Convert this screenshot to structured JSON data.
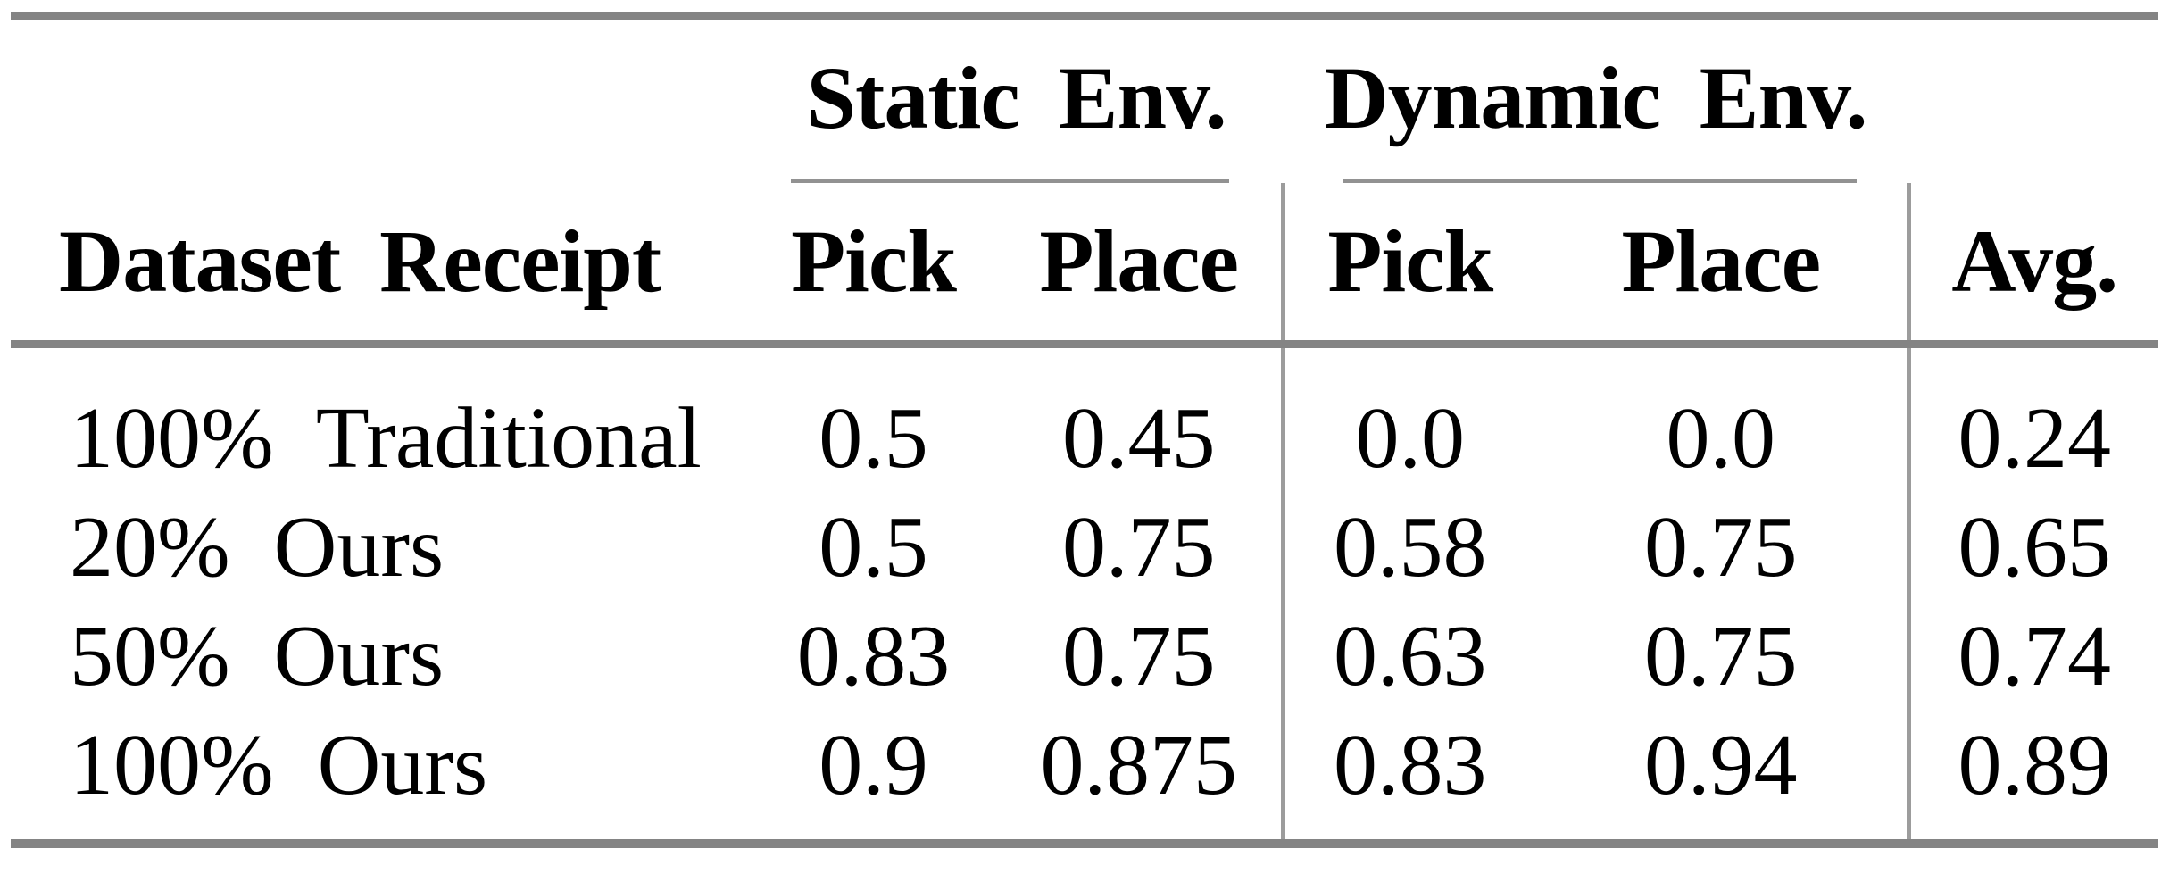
{
  "table": {
    "col_groups": [
      {
        "label": "Static Env."
      },
      {
        "label": "Dynamic Env."
      }
    ],
    "columns": {
      "dataset": "Dataset Receipt",
      "static_pick": "Pick",
      "static_place": "Place",
      "dynamic_pick": "Pick",
      "dynamic_place": "Place",
      "avg": "Avg."
    },
    "rows": [
      {
        "label": "100% Traditional",
        "static_pick": "0.5",
        "static_place": "0.45",
        "dynamic_pick": "0.0",
        "dynamic_place": "0.0",
        "avg": "0.24"
      },
      {
        "label": "20% Ours",
        "static_pick": "0.5",
        "static_place": "0.75",
        "dynamic_pick": "0.58",
        "dynamic_place": "0.75",
        "avg": "0.65"
      },
      {
        "label": "50% Ours",
        "static_pick": "0.83",
        "static_place": "0.75",
        "dynamic_pick": "0.63",
        "dynamic_place": "0.75",
        "avg": "0.74"
      },
      {
        "label": "100% Ours",
        "static_pick": "0.9",
        "static_place": "0.875",
        "dynamic_pick": "0.83",
        "dynamic_place": "0.94",
        "avg": "0.89"
      }
    ],
    "colors": {
      "rule_heavy": "#848484",
      "rule_mid": "#929292",
      "rule_light": "#9c9c9c",
      "text": "#000000",
      "background": "#ffffff"
    }
  },
  "chart_data": {
    "type": "table",
    "title": "",
    "column_groups": [
      {
        "label": "Static Env.",
        "columns": [
          "Pick",
          "Place"
        ]
      },
      {
        "label": "Dynamic Env.",
        "columns": [
          "Pick",
          "Place"
        ]
      }
    ],
    "columns": [
      "Dataset Receipt",
      "Pick (Static)",
      "Place (Static)",
      "Pick (Dynamic)",
      "Place (Dynamic)",
      "Avg."
    ],
    "rows": [
      [
        "100% Traditional",
        0.5,
        0.45,
        0.0,
        0.0,
        0.24
      ],
      [
        "20% Ours",
        0.5,
        0.75,
        0.58,
        0.75,
        0.65
      ],
      [
        "50% Ours",
        0.83,
        0.75,
        0.63,
        0.75,
        0.74
      ],
      [
        "100% Ours",
        0.9,
        0.875,
        0.83,
        0.94,
        0.89
      ]
    ]
  }
}
